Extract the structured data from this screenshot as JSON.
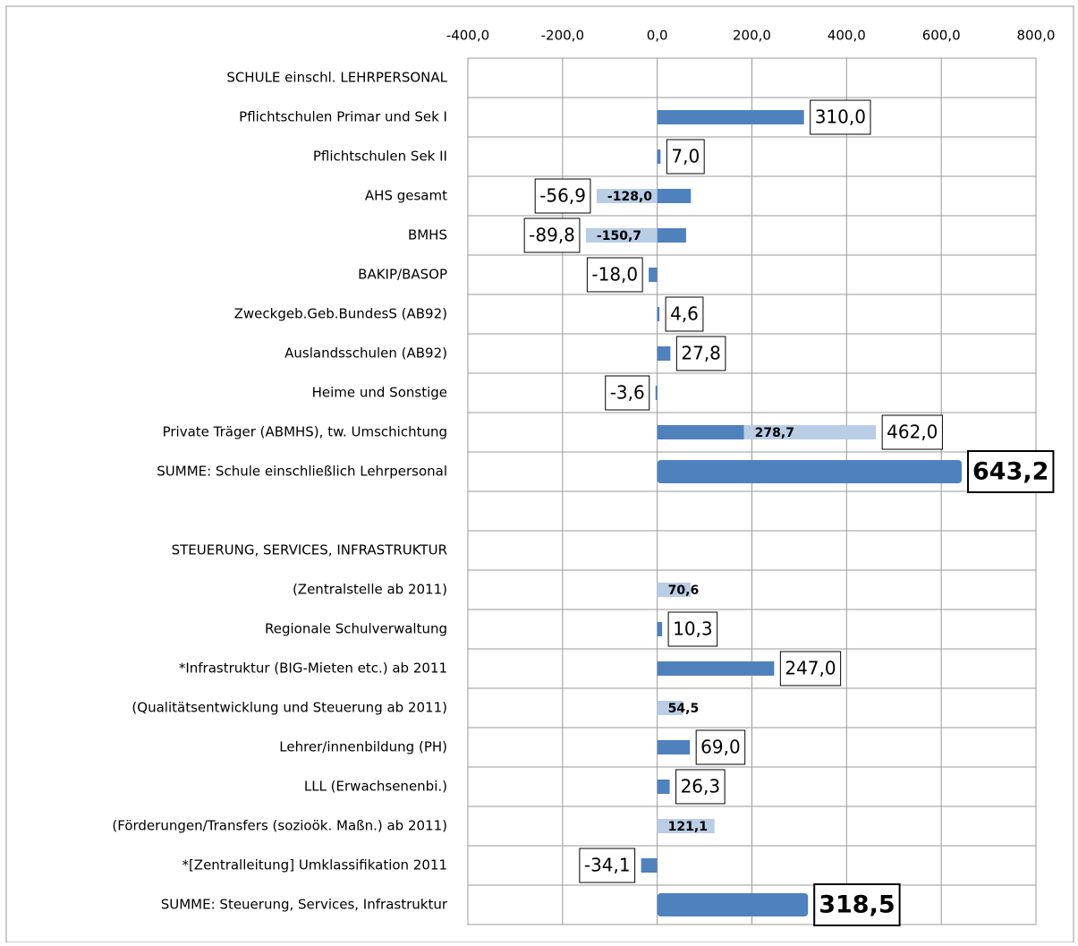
{
  "chart_data": {
    "type": "bar",
    "categories": [
      "SCHULE einschl. LEHRPERSONAL",
      "Pflichtschulen Primar und Sek I",
      "Pflichtschulen Sek II",
      "AHS gesamt",
      "BMHS",
      "BAKIP/BASOP",
      "Zweckgeb.Geb.BundesS (AB92)",
      "Auslandsschulen (AB92)",
      "Heime und Sonstige",
      "Private Träger (ABMHS), tw. Umschichtung",
      "SUMME: Schule einschließlich Lehrpersonal",
      null,
      "STEUERUNG, SERVICES, INFRASTRUKTUR",
      "(Zentralstelle ab 2011)",
      "Regionale Schulverwaltung",
      "*Infrastruktur (BIG-Mieten etc.) ab 2011",
      "(Qualitätsentwicklung und Steuerung ab 2011)",
      "Lehrer/innenbildung (PH)",
      "LLL (Erwachsenenbi.)",
      "(Förderungen/Transfers (sozioök. Maßn.) ab 2011)",
      "*[Zentralleitung] Umklassifikation 2011",
      "SUMME: Steuerung, Services, Infrastruktur"
    ],
    "series": [
      {
        "color": "#4f81bd",
        "values": [
          null,
          310.0,
          7.0,
          71.1,
          60.9,
          -18.0,
          4.6,
          27.8,
          -3.6,
          183.3,
          643.2,
          null,
          null,
          null,
          10.3,
          247.0,
          null,
          69.0,
          26.3,
          null,
          -34.1,
          318.5
        ]
      },
      {
        "color": "#b9cde5",
        "values": [
          null,
          null,
          null,
          -128.0,
          -150.7,
          null,
          null,
          null,
          null,
          278.7,
          null,
          null,
          null,
          70.6,
          null,
          null,
          54.5,
          null,
          null,
          121.1,
          null,
          null
        ],
        "value_labels": [
          null,
          null,
          null,
          "-128,0",
          "-150,7",
          null,
          null,
          null,
          null,
          "278,7",
          null,
          null,
          null,
          "70,6",
          null,
          null,
          "54,5",
          null,
          null,
          "121,1",
          null,
          null
        ]
      }
    ],
    "totals": [
      null,
      310.0,
      7.0,
      -56.9,
      -89.8,
      -18.0,
      4.6,
      27.8,
      -3.6,
      462.0,
      643.2,
      null,
      null,
      null,
      10.3,
      247.0,
      null,
      69.0,
      26.3,
      null,
      -34.1,
      318.5
    ],
    "total_labels": [
      null,
      "310,0",
      "7,0",
      "-56,9",
      "-89,8",
      "-18,0",
      "4,6",
      "27,8",
      "-3,6",
      "462,0",
      "643,2",
      null,
      null,
      null,
      "10,3",
      "247,0",
      null,
      "69,0",
      "26,3",
      null,
      "-34,1",
      "318,5"
    ],
    "xlim": [
      -400,
      800
    ],
    "xticks": [
      {
        "value": -400,
        "label": "-400,0"
      },
      {
        "value": -200,
        "label": "-200,0"
      },
      {
        "value": 0,
        "label": "0,0"
      },
      {
        "value": 200,
        "label": "200,0"
      },
      {
        "value": 400,
        "label": "400,0"
      },
      {
        "value": 600,
        "label": "600,0"
      },
      {
        "value": 800,
        "label": "800,0"
      }
    ],
    "grid": true
  }
}
